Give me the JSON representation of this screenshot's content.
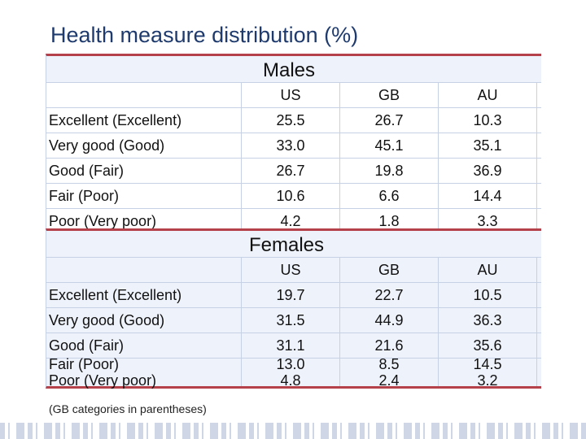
{
  "title": "Health measure distribution (%)",
  "columns": [
    "US",
    "GB",
    "AU"
  ],
  "males": {
    "heading": "Males",
    "rows": [
      {
        "label": "Excellent (Excellent)",
        "values": [
          "25.5",
          "26.7",
          "10.3"
        ]
      },
      {
        "label": "Very good (Good)",
        "values": [
          "33.0",
          "45.1",
          "35.1"
        ]
      },
      {
        "label": "Good (Fair)",
        "values": [
          "26.7",
          "19.8",
          "36.9"
        ]
      },
      {
        "label": "Fair (Poor)",
        "values": [
          "10.6",
          "6.6",
          "14.4"
        ]
      },
      {
        "label": "Poor (Very poor)",
        "values": [
          "4.2",
          "1.8",
          "3.3"
        ]
      }
    ]
  },
  "females": {
    "heading": "Females",
    "rows": [
      {
        "label": "Excellent (Excellent)",
        "values": [
          "19.7",
          "22.7",
          "10.5"
        ]
      },
      {
        "label": "Very good (Good)",
        "values": [
          "31.5",
          "44.9",
          "36.3"
        ]
      },
      {
        "label": "Good (Fair)",
        "values": [
          "31.1",
          "21.6",
          "35.6"
        ]
      },
      {
        "label": "Fair (Poor)",
        "values": [
          "13.0",
          "8.5",
          "14.5"
        ]
      },
      {
        "label": "Poor (Very poor)",
        "values": [
          "4.8",
          "2.4",
          "3.2"
        ]
      }
    ]
  },
  "footnote": "(GB categories in parentheses)"
}
